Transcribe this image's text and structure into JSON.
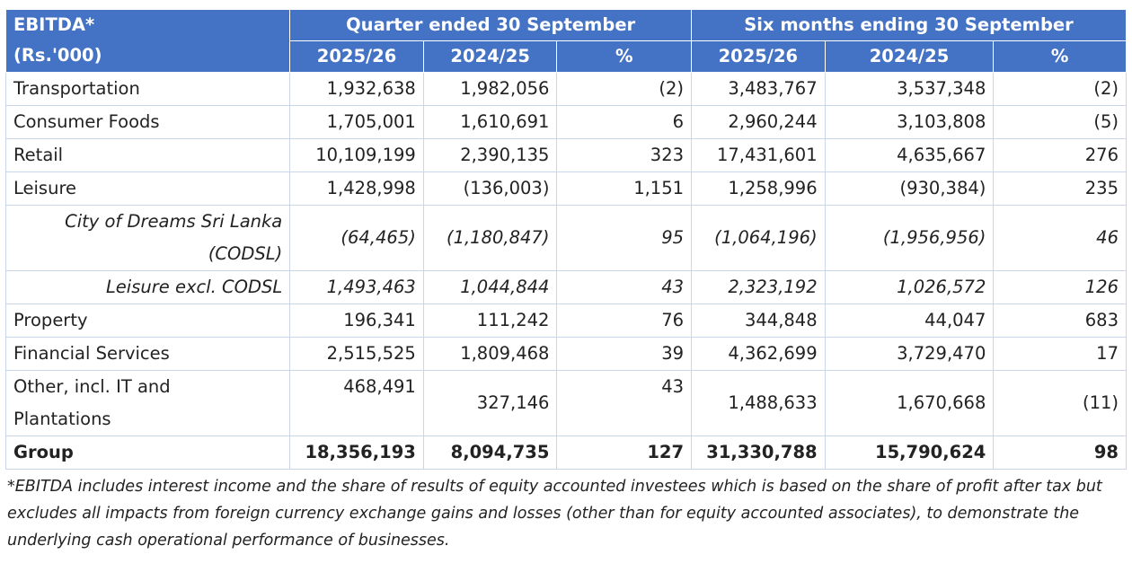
{
  "table": {
    "header": {
      "label_line1": "EBITDA*",
      "label_line2": "(Rs.'000)",
      "quarter_group": "Quarter ended 30 September",
      "six_month_group": "Six months ending 30 September",
      "sub_columns": [
        "2025/26",
        "2024/25",
        "%",
        "2025/26",
        "2024/25",
        "%"
      ]
    },
    "colors": {
      "header_bg": "#4472c4",
      "header_text": "#ffffff",
      "grid": "#c9d6ea"
    },
    "rows": [
      {
        "label": "Transportation",
        "values": [
          "1,932,638",
          "1,982,056",
          "(2)",
          "3,483,767",
          "3,537,348",
          "(2)"
        ]
      },
      {
        "label": "Consumer Foods",
        "values": [
          "1,705,001",
          "1,610,691",
          "6",
          "2,960,244",
          "3,103,808",
          "(5)"
        ]
      },
      {
        "label": "Retail",
        "values": [
          "10,109,199",
          "2,390,135",
          "323",
          "17,431,601",
          "4,635,667",
          "276"
        ]
      },
      {
        "label": "Leisure",
        "values": [
          "1,428,998",
          "(136,003)",
          "1,151",
          "1,258,996",
          "(930,384)",
          "235"
        ]
      },
      {
        "label": "City of Dreams Sri Lanka (CODSL)",
        "label_line1": "City of Dreams Sri Lanka",
        "label_line2": "(CODSL)",
        "values": [
          "(64,465)",
          "(1,180,847)",
          "95",
          "(1,064,196)",
          "(1,956,956)",
          "46"
        ],
        "style": "italic-sub"
      },
      {
        "label": "Leisure excl. CODSL",
        "values": [
          "1,493,463",
          "1,044,844",
          "43",
          "2,323,192",
          "1,026,572",
          "126"
        ],
        "style": "italic-sub"
      },
      {
        "label": "Property",
        "values": [
          "196,341",
          "111,242",
          "76",
          "344,848",
          "44,047",
          "683"
        ]
      },
      {
        "label": "Financial Services",
        "values": [
          "2,515,525",
          "1,809,468",
          "39",
          "4,362,699",
          "3,729,470",
          "17"
        ]
      },
      {
        "label": "Other, incl. IT and Plantations",
        "label_line1": "Other, incl. IT and",
        "label_line2": "Plantations",
        "values": [
          "468,491",
          "327,146",
          "43",
          "1,488,633",
          "1,670,668",
          "(11)"
        ]
      },
      {
        "label": "Group",
        "values": [
          "18,356,193",
          "8,094,735",
          "127",
          "31,330,788",
          "15,790,624",
          "98"
        ],
        "style": "bold-total"
      }
    ]
  },
  "footnote": "*EBITDA includes interest income and the share of results of equity accounted investees which is based on the share of profit after tax but excludes all impacts from foreign currency exchange gains and losses (other than for equity accounted associates), to demonstrate the underlying cash operational performance of businesses."
}
